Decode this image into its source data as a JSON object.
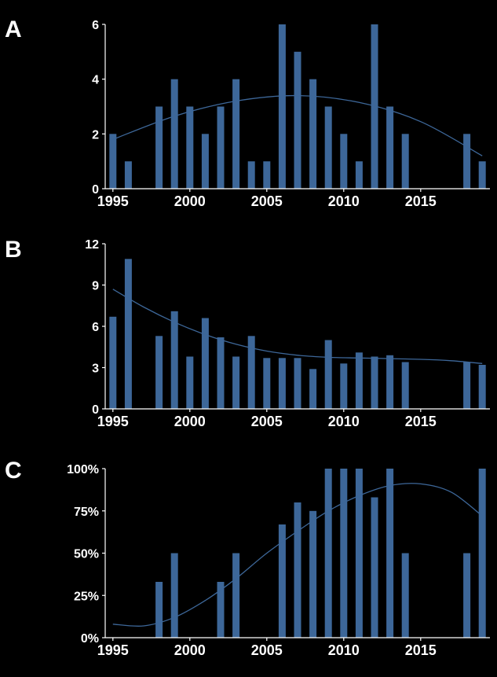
{
  "chart_data": [
    {
      "panel_label": "A",
      "type": "bar",
      "x": [
        1995,
        1996,
        1998,
        1999,
        2000,
        2001,
        2002,
        2003,
        2004,
        2005,
        2006,
        2007,
        2008,
        2009,
        2010,
        2011,
        2012,
        2013,
        2014,
        2018,
        2019
      ],
      "values": [
        2,
        1,
        3,
        4,
        3,
        2,
        3,
        4,
        1,
        1,
        6,
        5,
        4,
        3,
        2,
        1,
        6,
        3,
        2,
        2,
        1
      ],
      "ylim": [
        0,
        6
      ],
      "yticks": [
        "0",
        "2",
        "4",
        "6"
      ],
      "ytick_values": [
        0,
        2,
        4,
        6
      ],
      "xlim": [
        1994.5,
        2019.5
      ],
      "xticks": [
        "1995",
        "2000",
        "2005",
        "2010",
        "2015"
      ],
      "xtick_values": [
        1995,
        2000,
        2005,
        2010,
        2015
      ],
      "trendline": {
        "x": [
          1995,
          1999,
          2003,
          2007,
          2011,
          2015,
          2019
        ],
        "y": [
          1.8,
          2.65,
          3.2,
          3.4,
          3.15,
          2.45,
          1.2
        ]
      },
      "grid": false,
      "colors": {
        "bar": "#3d6799",
        "trend": "#3d6799"
      }
    },
    {
      "panel_label": "B",
      "type": "bar",
      "x": [
        1995,
        1996,
        1998,
        1999,
        2000,
        2001,
        2002,
        2003,
        2004,
        2005,
        2006,
        2007,
        2008,
        2009,
        2010,
        2011,
        2012,
        2013,
        2014,
        2018,
        2019
      ],
      "values": [
        6.7,
        10.9,
        5.3,
        7.1,
        3.8,
        6.6,
        5.2,
        3.8,
        5.3,
        3.7,
        3.7,
        3.7,
        2.9,
        5.0,
        3.3,
        4.1,
        3.8,
        3.9,
        3.4,
        3.4,
        3.2
      ],
      "ylim": [
        0,
        12
      ],
      "yticks": [
        "0",
        "3",
        "6",
        "9",
        "12"
      ],
      "ytick_values": [
        0,
        3,
        6,
        9,
        12
      ],
      "xlim": [
        1994.5,
        2019.5
      ],
      "xticks": [
        "1995",
        "2000",
        "2005",
        "2010",
        "2015"
      ],
      "xtick_values": [
        1995,
        2000,
        2005,
        2010,
        2015
      ],
      "trendline": {
        "x": [
          1995,
          1997,
          1999,
          2001,
          2003,
          2005,
          2007,
          2009,
          2011,
          2013,
          2015,
          2017,
          2019
        ],
        "y": [
          8.7,
          7.4,
          6.3,
          5.4,
          4.7,
          4.2,
          3.9,
          3.75,
          3.7,
          3.65,
          3.6,
          3.5,
          3.3
        ]
      },
      "grid": false,
      "colors": {
        "bar": "#3d6799",
        "trend": "#3d6799"
      }
    },
    {
      "panel_label": "C",
      "type": "bar",
      "x": [
        1998,
        1999,
        2002,
        2003,
        2006,
        2007,
        2008,
        2009,
        2010,
        2011,
        2012,
        2013,
        2014,
        2018,
        2019
      ],
      "values": [
        33,
        50,
        33,
        50,
        67,
        80,
        75,
        100,
        100,
        100,
        83,
        100,
        50,
        50,
        100
      ],
      "ylim": [
        0,
        100
      ],
      "yticks": [
        "0%",
        "25%",
        "50%",
        "75%",
        "100%"
      ],
      "ytick_values": [
        0,
        25,
        50,
        75,
        100
      ],
      "xlim": [
        1994.5,
        2019.5
      ],
      "xticks": [
        "1995",
        "2000",
        "2005",
        "2010",
        "2015"
      ],
      "xtick_values": [
        1995,
        2000,
        2005,
        2010,
        2015
      ],
      "trendline": {
        "x": [
          1995,
          1997,
          1999,
          2001,
          2003,
          2005,
          2007,
          2009,
          2011,
          2013,
          2015,
          2017,
          2019
        ],
        "y": [
          8,
          7,
          12,
          22,
          35,
          50,
          63,
          75,
          84,
          90,
          91,
          86,
          72
        ]
      },
      "grid": false,
      "colors": {
        "bar": "#3d6799",
        "trend": "#3d6799"
      }
    }
  ]
}
